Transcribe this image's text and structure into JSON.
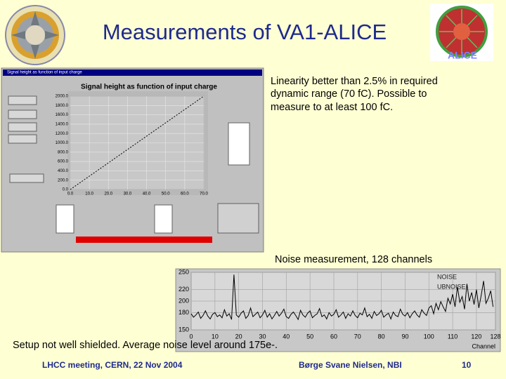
{
  "title": "Measurements of VA1-ALICE",
  "alice_logo_text": "ALICE",
  "linearity_text": [
    "Linearity better than 2.5% in required",
    "dynamic range (70 fC). Possible to",
    "measure to at least 100 fC."
  ],
  "noise_caption": "Noise measurement, 128 channels",
  "setup_note": "Setup not well shielded. Average noise level around 175e-.",
  "footer": {
    "event": "LHCC meeting, CERN, 22 Nov 2004",
    "author": "Børge Svane Nielsen, NBI",
    "page": "10"
  },
  "window": {
    "title_bar": "Signal height as function of input charge",
    "heading": "Signal height as function of input charge",
    "chart": {
      "type": "line",
      "ylim": [
        0,
        2000
      ],
      "yticks": [
        {
          "value": 0,
          "label": "0.0"
        },
        {
          "value": 200,
          "label": "200.0"
        },
        {
          "value": 400,
          "label": "400.0"
        },
        {
          "value": 600,
          "label": "600.0"
        },
        {
          "value": 800,
          "label": "800.0"
        },
        {
          "value": 1000,
          "label": "1000.0"
        },
        {
          "value": 1200,
          "label": "1200.0"
        },
        {
          "value": 1400,
          "label": "1400.0"
        },
        {
          "value": 1600,
          "label": "1600.0"
        },
        {
          "value": 1800,
          "label": "1800.0"
        },
        {
          "value": 2000,
          "label": "2000.0"
        }
      ],
      "xlim": [
        0,
        70
      ],
      "xticks": [
        {
          "value": 0,
          "label": "0.0"
        },
        {
          "value": 10,
          "label": "10.0"
        },
        {
          "value": 20,
          "label": "20.0"
        },
        {
          "value": 30,
          "label": "30.0"
        },
        {
          "value": 40,
          "label": "40.0"
        },
        {
          "value": 50,
          "label": "50.0"
        },
        {
          "value": 60,
          "label": "60.0"
        },
        {
          "value": 70,
          "label": "70.0"
        }
      ],
      "x": [
        0,
        70
      ],
      "values": [
        0,
        2000
      ],
      "color": "#000000"
    }
  },
  "noise_chart": {
    "type": "line",
    "ylim": [
      150,
      250
    ],
    "yticks": [
      150,
      180,
      200,
      220,
      250
    ],
    "xlim": [
      0,
      128
    ],
    "xticks": [
      0,
      10,
      20,
      30,
      40,
      50,
      60,
      70,
      80,
      90,
      100,
      110,
      120,
      128
    ],
    "xlabel": "Channel",
    "series": [
      {
        "name": "NOISE",
        "color": "#000000",
        "values": [
          178,
          172,
          176,
          181,
          170,
          175,
          183,
          174,
          169,
          177,
          180,
          173,
          176,
          171,
          185,
          174,
          178,
          168,
          246,
          176,
          172,
          179,
          183,
          170,
          175,
          188,
          173,
          177,
          181,
          171,
          176,
          184,
          172,
          178,
          169,
          175,
          182,
          174,
          179,
          186,
          173,
          170,
          177,
          181,
          175,
          168,
          184,
          176,
          172,
          179,
          183,
          171,
          175,
          178,
          187,
          173,
          176,
          169,
          180,
          174,
          177,
          185,
          172,
          176,
          181,
          170,
          178,
          174,
          183,
          175,
          171,
          179,
          176,
          188,
          173,
          177,
          170,
          182,
          175,
          178,
          184,
          172,
          176,
          179,
          169,
          181,
          175,
          173,
          186,
          177,
          174,
          180,
          171,
          178,
          183,
          176,
          172,
          185,
          179,
          175,
          188,
          192,
          178,
          196,
          185,
          199,
          190,
          182,
          205,
          195,
          212,
          190,
          225,
          198,
          208,
          186,
          230,
          200,
          215,
          194,
          220,
          188,
          210,
          235,
          196,
          205,
          218,
          190
        ]
      }
    ],
    "legend2": "UBNOISE"
  }
}
